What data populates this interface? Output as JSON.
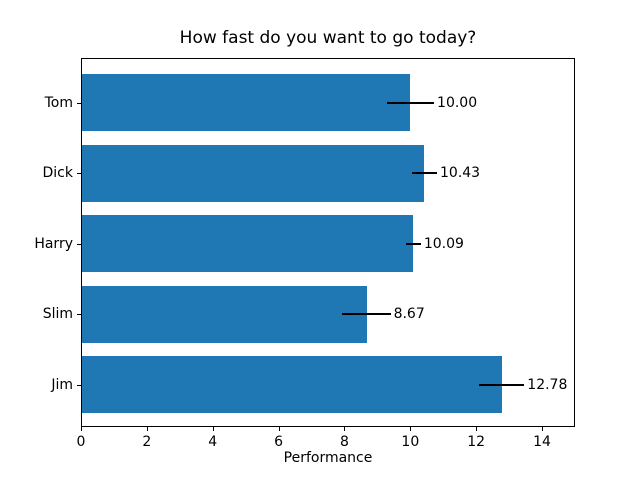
{
  "chart_data": {
    "type": "bar",
    "orientation": "horizontal",
    "title": "How fast do you want to go today?",
    "xlabel": "Performance",
    "ylabel": "",
    "categories": [
      "Tom",
      "Dick",
      "Harry",
      "Slim",
      "Jim"
    ],
    "values": [
      10.0,
      10.43,
      10.09,
      8.67,
      12.78
    ],
    "errors": [
      0.72,
      0.38,
      0.23,
      0.73,
      0.68
    ],
    "value_labels": [
      "10.00",
      "10.43",
      "10.09",
      "8.67",
      "12.78"
    ],
    "xticks": [
      "0",
      "2",
      "4",
      "6",
      "8",
      "10",
      "12",
      "14"
    ],
    "xtick_values": [
      0,
      2,
      4,
      6,
      8,
      10,
      12,
      14
    ],
    "xlim": [
      0,
      15
    ],
    "grid": false,
    "legend": null,
    "bar_color": "#1f77b4",
    "error_bar_color": "#000000",
    "axis_color": "#000000",
    "background_color": "#ffffff"
  }
}
